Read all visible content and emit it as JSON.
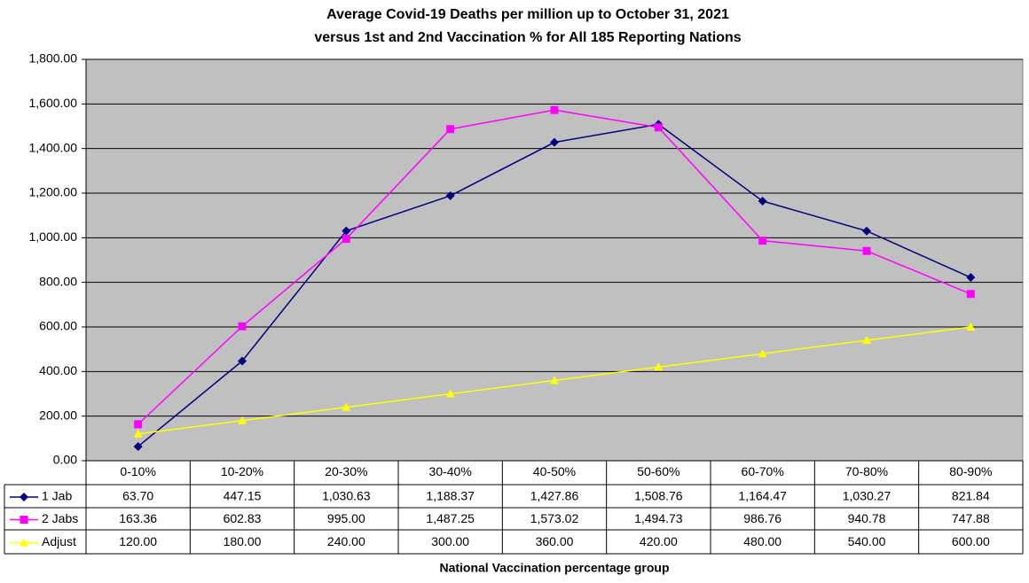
{
  "chart_data": {
    "type": "line",
    "title": [
      "Average Covid-19 Deaths per million up to October 31, 2021",
      "versus 1st and 2nd Vaccination % for All 185 Reporting Nations"
    ],
    "x_label": "National Vaccination percentage group",
    "categories": [
      "0-10%",
      "10-20%",
      "20-30%",
      "30-40%",
      "40-50%",
      "50-60%",
      "60-70%",
      "70-80%",
      "80-90%"
    ],
    "series": [
      {
        "name": "1 Jab",
        "color": "#000080",
        "marker": "diamond",
        "values": [
          63.7,
          447.15,
          1030.63,
          1188.37,
          1427.86,
          1508.76,
          1164.47,
          1030.27,
          821.84
        ],
        "value_labels": [
          "63.70",
          "447.15",
          "1,030.63",
          "1,188.37",
          "1,427.86",
          "1,508.76",
          "1,164.47",
          "1,030.27",
          "821.84"
        ]
      },
      {
        "name": "2 Jabs",
        "color": "#ff00ff",
        "marker": "square",
        "values": [
          163.36,
          602.83,
          995.0,
          1487.25,
          1573.02,
          1494.73,
          986.76,
          940.78,
          747.88
        ],
        "value_labels": [
          "163.36",
          "602.83",
          "995.00",
          "1,487.25",
          "1,573.02",
          "1,494.73",
          "986.76",
          "940.78",
          "747.88"
        ]
      },
      {
        "name": "Adjust",
        "color": "#ffff00",
        "marker": "triangle",
        "values": [
          120,
          180,
          240,
          300,
          360,
          420,
          480,
          540,
          600
        ],
        "value_labels": [
          "120.00",
          "180.00",
          "240.00",
          "300.00",
          "360.00",
          "420.00",
          "480.00",
          "540.00",
          "600.00"
        ]
      }
    ],
    "ylim": [
      0,
      1800
    ],
    "yticks": [
      {
        "value": 0,
        "label": "0.00"
      },
      {
        "value": 200,
        "label": "200.00"
      },
      {
        "value": 400,
        "label": "400.00"
      },
      {
        "value": 600,
        "label": "600.00"
      },
      {
        "value": 800,
        "label": "800.00"
      },
      {
        "value": 1000,
        "label": "1,000.00"
      },
      {
        "value": 1200,
        "label": "1,200.00"
      },
      {
        "value": 1400,
        "label": "1,400.00"
      },
      {
        "value": 1600,
        "label": "1,600.00"
      },
      {
        "value": 1800,
        "label": "1,800.00"
      }
    ],
    "grid": true,
    "plot_background": "#c0c0c0"
  }
}
